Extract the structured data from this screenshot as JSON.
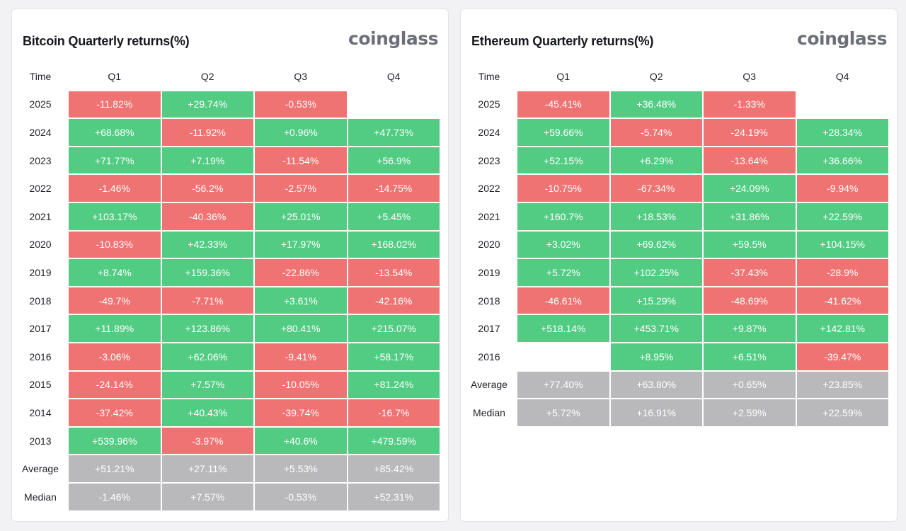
{
  "colors": {
    "positive": "#52cc83",
    "negative": "#f07373",
    "summary": "#b9b9bb"
  },
  "panels": [
    {
      "title": "Bitcoin Quarterly returns(%)",
      "brand": "coinglass",
      "headers": [
        "Time",
        "Q1",
        "Q2",
        "Q3",
        "Q4"
      ],
      "rows": [
        {
          "label": "2025",
          "values": [
            "-11.82%",
            "+29.74%",
            "-0.53%",
            ""
          ]
        },
        {
          "label": "2024",
          "values": [
            "+68.68%",
            "-11.92%",
            "+0.96%",
            "+47.73%"
          ]
        },
        {
          "label": "2023",
          "values": [
            "+71.77%",
            "+7.19%",
            "-11.54%",
            "+56.9%"
          ]
        },
        {
          "label": "2022",
          "values": [
            "-1.46%",
            "-56.2%",
            "-2.57%",
            "-14.75%"
          ]
        },
        {
          "label": "2021",
          "values": [
            "+103.17%",
            "-40.36%",
            "+25.01%",
            "+5.45%"
          ]
        },
        {
          "label": "2020",
          "values": [
            "-10.83%",
            "+42.33%",
            "+17.97%",
            "+168.02%"
          ]
        },
        {
          "label": "2019",
          "values": [
            "+8.74%",
            "+159.36%",
            "-22.86%",
            "-13.54%"
          ]
        },
        {
          "label": "2018",
          "values": [
            "-49.7%",
            "-7.71%",
            "+3.61%",
            "-42.16%"
          ]
        },
        {
          "label": "2017",
          "values": [
            "+11.89%",
            "+123.86%",
            "+80.41%",
            "+215.07%"
          ]
        },
        {
          "label": "2016",
          "values": [
            "-3.06%",
            "+62.06%",
            "-9.41%",
            "+58.17%"
          ]
        },
        {
          "label": "2015",
          "values": [
            "-24.14%",
            "+7.57%",
            "-10.05%",
            "+81.24%"
          ]
        },
        {
          "label": "2014",
          "values": [
            "-37.42%",
            "+40.43%",
            "-39.74%",
            "-16.7%"
          ]
        },
        {
          "label": "2013",
          "values": [
            "+539.96%",
            "-3.97%",
            "+40.6%",
            "+479.59%"
          ]
        }
      ],
      "summary": [
        {
          "label": "Average",
          "values": [
            "+51.21%",
            "+27.11%",
            "+5.53%",
            "+85.42%"
          ]
        },
        {
          "label": "Median",
          "values": [
            "-1.46%",
            "+7.57%",
            "-0.53%",
            "+52.31%"
          ]
        }
      ]
    },
    {
      "title": "Ethereum Quarterly returns(%)",
      "brand": "coinglass",
      "headers": [
        "Time",
        "Q1",
        "Q2",
        "Q3",
        "Q4"
      ],
      "rows": [
        {
          "label": "2025",
          "values": [
            "-45.41%",
            "+36.48%",
            "-1.33%",
            ""
          ]
        },
        {
          "label": "2024",
          "values": [
            "+59.66%",
            "-5.74%",
            "-24.19%",
            "+28.34%"
          ]
        },
        {
          "label": "2023",
          "values": [
            "+52.15%",
            "+6.29%",
            "-13.64%",
            "+36.66%"
          ]
        },
        {
          "label": "2022",
          "values": [
            "-10.75%",
            "-67.34%",
            "+24.09%",
            "-9.94%"
          ]
        },
        {
          "label": "2021",
          "values": [
            "+160.7%",
            "+18.53%",
            "+31.86%",
            "+22.59%"
          ]
        },
        {
          "label": "2020",
          "values": [
            "+3.02%",
            "+69.62%",
            "+59.5%",
            "+104.15%"
          ]
        },
        {
          "label": "2019",
          "values": [
            "+5.72%",
            "+102.25%",
            "-37.43%",
            "-28.9%"
          ]
        },
        {
          "label": "2018",
          "values": [
            "-46.61%",
            "+15.29%",
            "-48.69%",
            "-41.62%"
          ]
        },
        {
          "label": "2017",
          "values": [
            "+518.14%",
            "+453.71%",
            "+9.87%",
            "+142.81%"
          ]
        },
        {
          "label": "2016",
          "values": [
            "",
            "+8.95%",
            "+6.51%",
            "-39.47%"
          ]
        }
      ],
      "summary": [
        {
          "label": "Average",
          "values": [
            "+77.40%",
            "+63.80%",
            "+0.65%",
            "+23.85%"
          ]
        },
        {
          "label": "Median",
          "values": [
            "+5.72%",
            "+16.91%",
            "+2.59%",
            "+22.59%"
          ]
        }
      ]
    }
  ]
}
